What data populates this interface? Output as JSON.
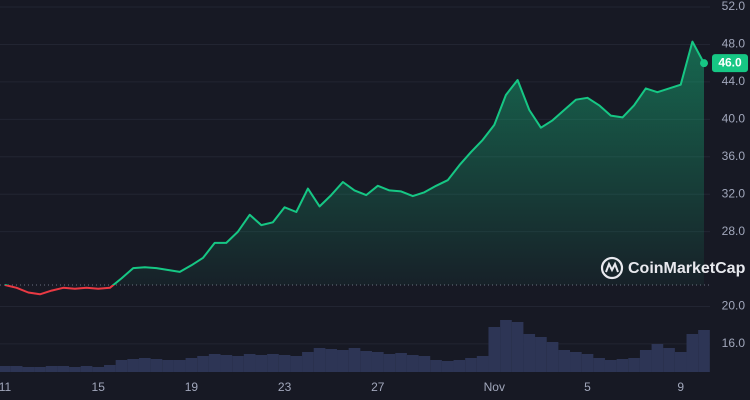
{
  "chart_data": {
    "type": "line",
    "categories": [
      "11",
      null,
      null,
      null,
      null,
      null,
      null,
      null,
      "15",
      null,
      null,
      null,
      null,
      null,
      null,
      null,
      "19",
      null,
      null,
      null,
      null,
      null,
      null,
      null,
      "23",
      null,
      null,
      null,
      null,
      null,
      null,
      null,
      "27",
      null,
      null,
      null,
      null,
      null,
      null,
      null,
      null,
      null,
      "Nov",
      null,
      null,
      null,
      null,
      null,
      null,
      null,
      "5",
      null,
      null,
      null,
      null,
      null,
      null,
      null,
      "9",
      null,
      null
    ],
    "series": [
      {
        "color": "#16c784",
        "below_color": "#ea3943",
        "values": [
          22.3,
          22.0,
          21.5,
          21.3,
          21.7,
          22.0,
          21.9,
          22.0,
          21.9,
          22.0,
          23.0,
          24.1,
          24.2,
          24.1,
          23.9,
          23.7,
          24.4,
          25.2,
          26.8,
          26.8,
          28.0,
          29.8,
          28.7,
          29.0,
          30.6,
          30.1,
          32.6,
          30.7,
          31.9,
          33.3,
          32.4,
          31.9,
          32.9,
          32.4,
          32.3,
          31.8,
          32.2,
          32.9,
          33.5,
          35.1,
          36.5,
          37.8,
          39.4,
          42.6,
          44.2,
          41.0,
          39.1,
          39.9,
          41.0,
          42.1,
          42.3,
          41.5,
          40.4,
          40.2,
          41.5,
          43.3,
          42.9,
          43.3,
          43.7,
          48.3,
          46.0
        ],
        "value_labels": [
          null,
          null,
          null,
          null,
          null,
          null,
          null,
          null,
          null,
          null,
          null,
          null,
          null,
          null,
          null,
          null,
          null,
          null,
          null,
          null,
          null,
          null,
          null,
          null,
          null,
          null,
          null,
          null,
          null,
          null,
          null,
          null,
          null,
          null,
          null,
          null,
          null,
          null,
          null,
          null,
          null,
          null,
          null,
          null,
          null,
          null,
          null,
          null,
          null,
          null,
          null,
          null,
          null,
          null,
          null,
          null,
          null,
          null,
          null,
          null,
          "46.0"
        ]
      }
    ],
    "baseline": 22.3,
    "volume": {
      "color": "#2d3555",
      "values": [
        6,
        6,
        5,
        5,
        6,
        6,
        5,
        6,
        5,
        7,
        12,
        13,
        14,
        13,
        12,
        12,
        14,
        16,
        18,
        17,
        16,
        18,
        17,
        18,
        17,
        16,
        20,
        24,
        23,
        22,
        24,
        21,
        20,
        18,
        19,
        17,
        16,
        12,
        11,
        12,
        14,
        16,
        45,
        52,
        50,
        38,
        35,
        30,
        22,
        20,
        18,
        14,
        12,
        13,
        14,
        22,
        28,
        24,
        20,
        38,
        42
      ]
    },
    "volume_ylim": [
      0,
      100
    ],
    "ylim": [
      13,
      52.75
    ],
    "yticks": [
      {
        "value": 16,
        "label": "16.0"
      },
      {
        "value": 20,
        "label": "20.0"
      },
      {
        "value": 28,
        "label": "28.0"
      },
      {
        "value": 32,
        "label": "32.0"
      },
      {
        "value": 36,
        "label": "36.0"
      },
      {
        "value": 40,
        "label": "40.0"
      },
      {
        "value": 44,
        "label": "44.0"
      },
      {
        "value": 48,
        "label": "48.0"
      },
      {
        "value": 52,
        "label": "52.0"
      }
    ],
    "grid": true,
    "watermark": "CoinMarketCap"
  }
}
